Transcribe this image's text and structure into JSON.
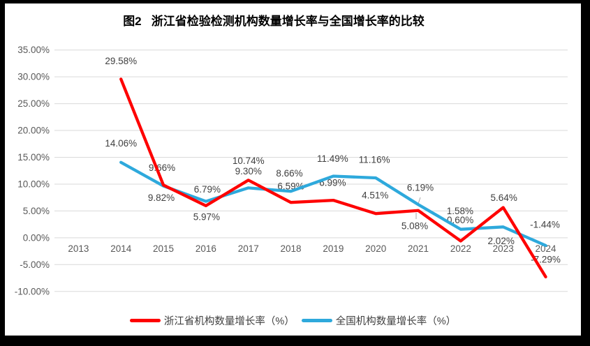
{
  "chart_data": {
    "type": "line",
    "title": "图2   浙江省检验检测机构数量增长率与全国增长率的比较",
    "categories": [
      "2013",
      "2014",
      "2015",
      "2016",
      "2017",
      "2018",
      "2019",
      "2020",
      "2021",
      "2022",
      "2023",
      "2024"
    ],
    "series": [
      {
        "name": "浙江省机构数量增长率（%）",
        "color": "#FE0000",
        "values": [
          null,
          29.58,
          9.82,
          5.97,
          10.74,
          6.59,
          6.99,
          4.51,
          5.08,
          -0.6,
          5.64,
          -7.29
        ],
        "labels": [
          null,
          "29.58%",
          "9.82%",
          "5.97%",
          "10.74%",
          "6.59%",
          "6.99%",
          "4.51%",
          "5.08%",
          "-0.60%",
          "5.64%",
          "-7.29%"
        ]
      },
      {
        "name": "全国机构数量增长率（%）",
        "color": "#2EA9DC",
        "values": [
          null,
          14.06,
          9.66,
          6.79,
          9.3,
          8.66,
          11.49,
          11.16,
          6.19,
          1.58,
          2.02,
          -1.44
        ],
        "labels": [
          null,
          "14.06%",
          "9.66%",
          "6.79%",
          "9.30%",
          "8.66%",
          "11.49%",
          "11.16%",
          "6.19%",
          "1.58%",
          "2.02%",
          "-1.44%"
        ]
      }
    ],
    "ylim": [
      -10,
      35
    ],
    "y_ticks": [
      "35.00%",
      "30.00%",
      "25.00%",
      "20.00%",
      "15.00%",
      "10.00%",
      "5.00%",
      "0.00%",
      "-5.00%",
      "-10.00%"
    ],
    "grid": true,
    "legend_position": "bottom",
    "colors": {
      "gridline": "#D9D9D9",
      "axis_text": "#595959",
      "label_text": "#3f3f3f",
      "leader_line": "#A6A6A6",
      "plot_background": "#FFFFFF",
      "frame": "#000000"
    }
  }
}
